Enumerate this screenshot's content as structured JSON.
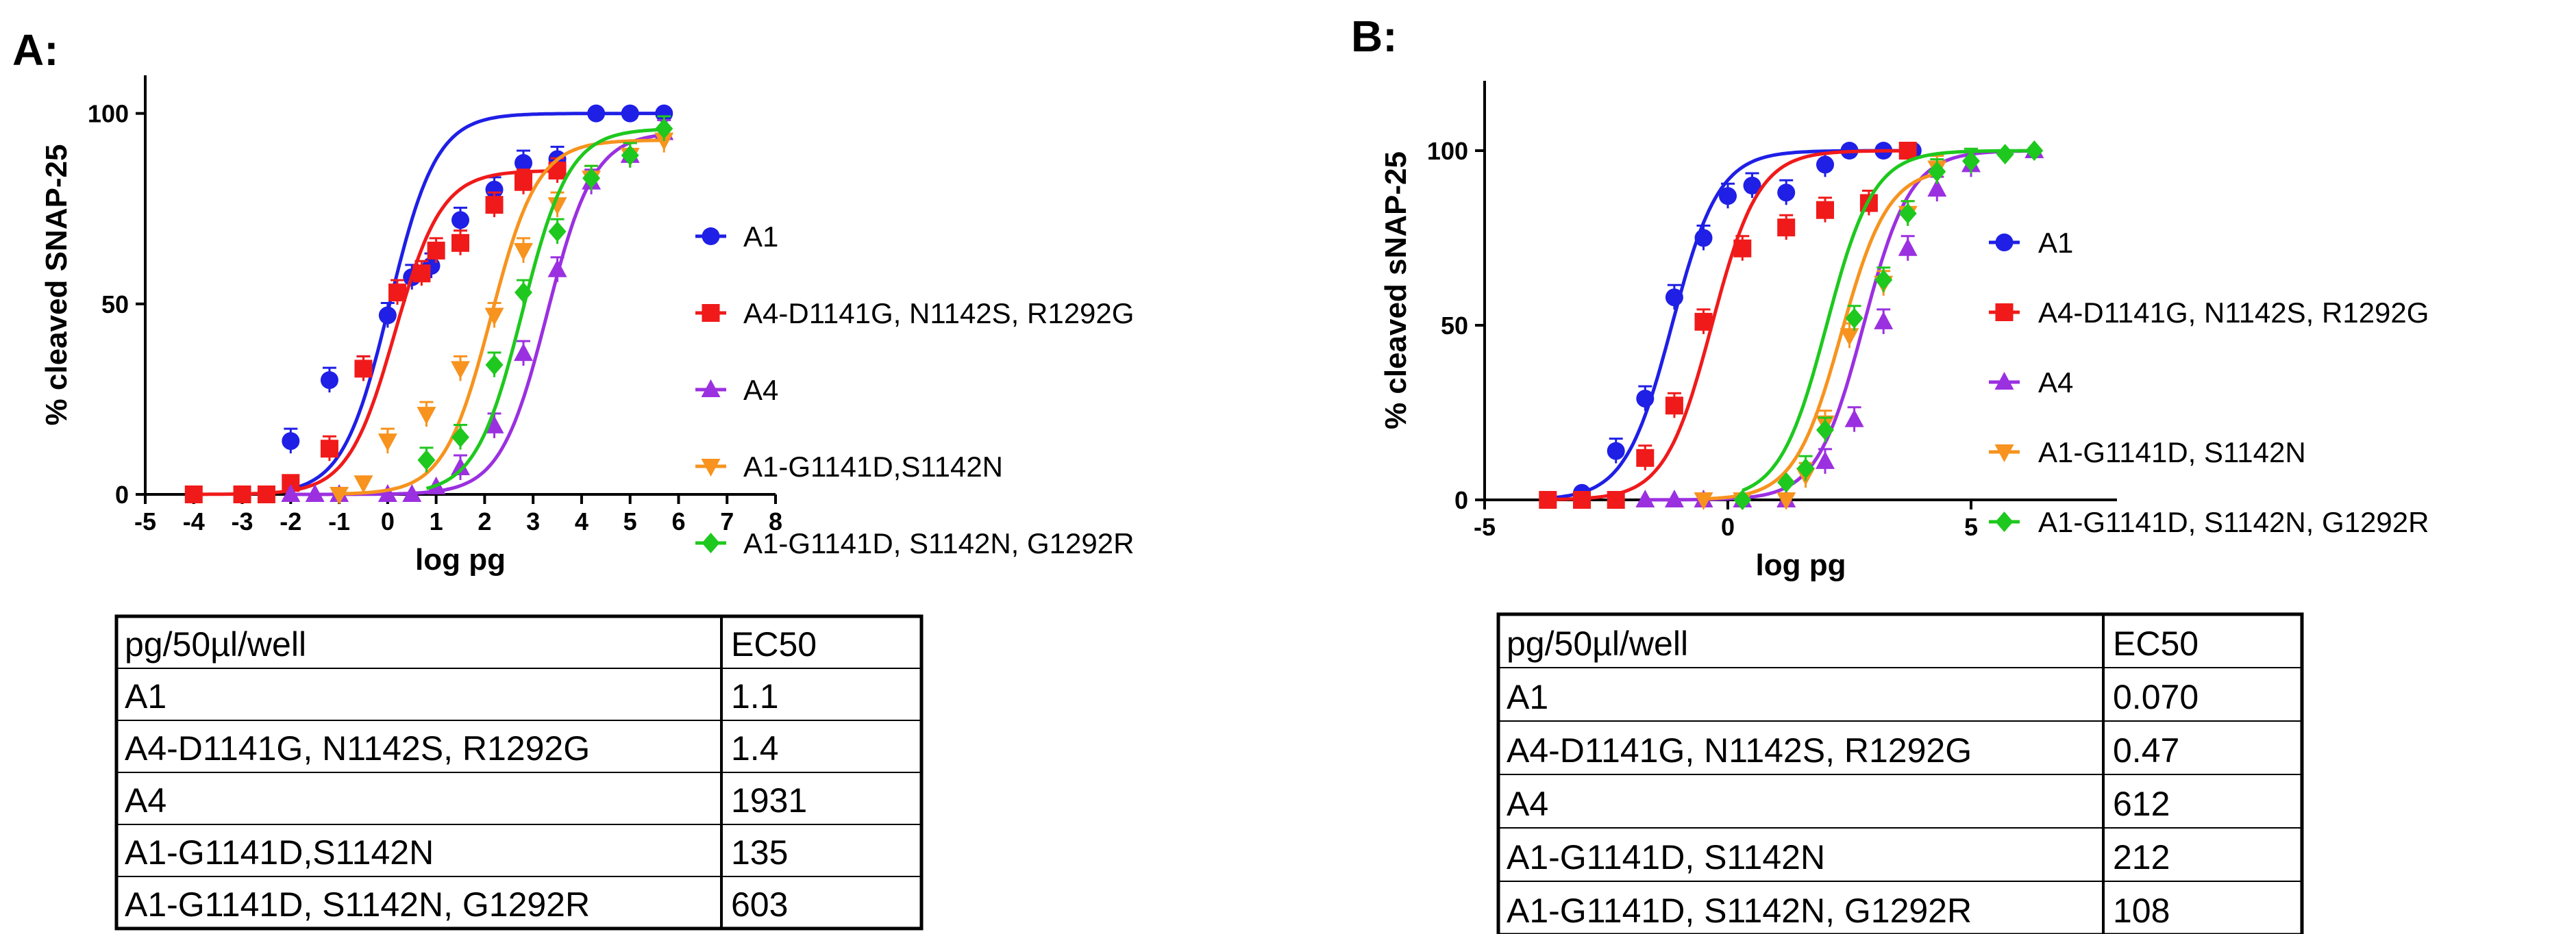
{
  "chart_data": [
    {
      "panel": "A:",
      "type": "line",
      "xlabel": "log pg",
      "ylabel": "% cleaved SNAP-25",
      "xlim": [
        -5,
        8
      ],
      "ylim": [
        0,
        110
      ],
      "xticks": [
        "-5",
        "-4",
        "-3",
        "-2",
        "-1",
        "0",
        "1",
        "2",
        "3",
        "4",
        "5",
        "6",
        "7",
        "8"
      ],
      "yticks": [
        "0",
        "50",
        "100"
      ],
      "legend_position": "right",
      "series": [
        {
          "name": "A1",
          "color": "#1f1fe6",
          "marker": "circle",
          "ec50_log": 0.04,
          "x": [
            -2,
            -1.2,
            -0.5,
            0,
            0.5,
            0.9,
            1.5,
            2.2,
            2.8,
            3.5,
            4.3,
            5,
            5.7
          ],
          "y": [
            14,
            30,
            33,
            47,
            57,
            60,
            72,
            80,
            87,
            88,
            100,
            100,
            100
          ]
        },
        {
          "name": "A4-D1141G, N1142S, R1292G",
          "color": "#f01a1a",
          "marker": "square",
          "ec50_log": 0.15,
          "x": [
            -4,
            -3,
            -2.5,
            -2,
            -1.2,
            -0.5,
            0.2,
            0.7,
            1,
            1.5,
            2.2,
            2.8,
            3.5
          ],
          "y": [
            0,
            0,
            0,
            3,
            12,
            33,
            53,
            58,
            64,
            66,
            76,
            82,
            85
          ]
        },
        {
          "name": "A4",
          "color": "#9b30e0",
          "marker": "triangle-up",
          "ec50_log": 3.29,
          "x": [
            -2,
            -1.5,
            -1,
            0,
            0.5,
            1,
            1.5,
            2.2,
            2.8,
            3.5,
            4.2,
            5,
            5.7
          ],
          "y": [
            0,
            0,
            0,
            0,
            0,
            2,
            7,
            18,
            37,
            59,
            82,
            89,
            95
          ]
        },
        {
          "name": "A1-G1141D,S1142N",
          "color": "#f7931e",
          "marker": "triangle-down",
          "ec50_log": 2.13,
          "x": [
            -1,
            -0.5,
            0,
            0.8,
            1.5,
            2.2,
            2.8,
            3.5,
            4.2,
            5,
            5.7
          ],
          "y": [
            0,
            3,
            14,
            21,
            33,
            47,
            64,
            76,
            83,
            89,
            93
          ]
        },
        {
          "name": "A1-G1141D, S1142N, G1292R",
          "color": "#1ec81e",
          "marker": "diamond",
          "ec50_log": 2.78,
          "x": [
            0.8,
            1.5,
            2.2,
            2.8,
            3.5,
            4.2,
            5,
            5.7
          ],
          "y": [
            9,
            15,
            34,
            53,
            69,
            83,
            89,
            96
          ]
        }
      ],
      "table": {
        "header": [
          "pg/50µl/well",
          "EC50"
        ],
        "rows": [
          [
            "A1",
            "1.1"
          ],
          [
            "A4-D1141G, N1142S, R1292G",
            "1.4"
          ],
          [
            "A4",
            "1931"
          ],
          [
            "A1-G1141D,S1142N",
            "135"
          ],
          [
            "A1-G1141D, S1142N, G1292R",
            "603"
          ]
        ]
      }
    },
    {
      "panel": "B:",
      "type": "line",
      "xlabel": "log pg",
      "ylabel": "% cleaved sNAP-25",
      "xlim": [
        -5,
        8
      ],
      "ylim": [
        0,
        120
      ],
      "xticks": [
        "-5",
        "0",
        "5"
      ],
      "xtick_values": [
        -5,
        0,
        5
      ],
      "yticks": [
        "0",
        "50",
        "100"
      ],
      "legend_position": "right",
      "series": [
        {
          "name": "A1",
          "color": "#1f1fe6",
          "marker": "circle",
          "ec50_log": -1.15,
          "x": [
            -3.7,
            -3,
            -2.3,
            -1.7,
            -1.1,
            -0.5,
            0,
            0.5,
            1.2,
            2,
            2.5,
            3.2,
            3.8
          ],
          "y": [
            0,
            2,
            14,
            29,
            58,
            75,
            87,
            90,
            88,
            96,
            100,
            100,
            100
          ]
        },
        {
          "name": "A4-D1141G, N1142S, R1292G",
          "color": "#f01a1a",
          "marker": "square",
          "ec50_log": -0.33,
          "x": [
            -3.7,
            -3,
            -2.3,
            -1.7,
            -1.1,
            -0.5,
            0.3,
            1.2,
            2,
            2.9,
            3.7
          ],
          "y": [
            0,
            0,
            0,
            12,
            27,
            51,
            72,
            78,
            83,
            85,
            100
          ]
        },
        {
          "name": "A4",
          "color": "#9b30e0",
          "marker": "triangle-up",
          "ec50_log": 2.79,
          "x": [
            -1.7,
            -1.1,
            -0.5,
            0.3,
            1.2,
            2,
            2.6,
            3.2,
            3.7,
            4.3,
            5,
            6.3
          ],
          "y": [
            0,
            0,
            0,
            0,
            0,
            11,
            23,
            51,
            72,
            89,
            96,
            100
          ]
        },
        {
          "name": "A1-G1141D, S1142N",
          "color": "#f7931e",
          "marker": "triangle-down",
          "ec50_log": 2.33,
          "x": [
            -0.5,
            0.3,
            1.2,
            1.6,
            2,
            2.5,
            3.2,
            3.7,
            4.3
          ],
          "y": [
            0,
            0,
            0,
            7,
            22,
            47,
            62,
            82,
            95
          ]
        },
        {
          "name": "A1-G1141D, S1142N, G1292R",
          "color": "#1ec81e",
          "marker": "diamond",
          "ec50_log": 2.03,
          "x": [
            0.3,
            1.2,
            1.6,
            2,
            2.6,
            3.2,
            3.7,
            4.3,
            5,
            5.7,
            6.3
          ],
          "y": [
            0,
            5,
            9,
            20,
            52,
            63,
            82,
            94,
            97,
            99,
            100
          ]
        }
      ],
      "table": {
        "header": [
          "pg/50µl/well",
          "EC50"
        ],
        "rows": [
          [
            "A1",
            "0.070"
          ],
          [
            "A4-D1141G, N1142S, R1292G",
            "0.47"
          ],
          [
            "A4",
            "612"
          ],
          [
            "A1-G1141D, S1142N",
            "212"
          ],
          [
            "A1-G1141D, S1142N, G1292R",
            "108"
          ]
        ]
      }
    }
  ]
}
